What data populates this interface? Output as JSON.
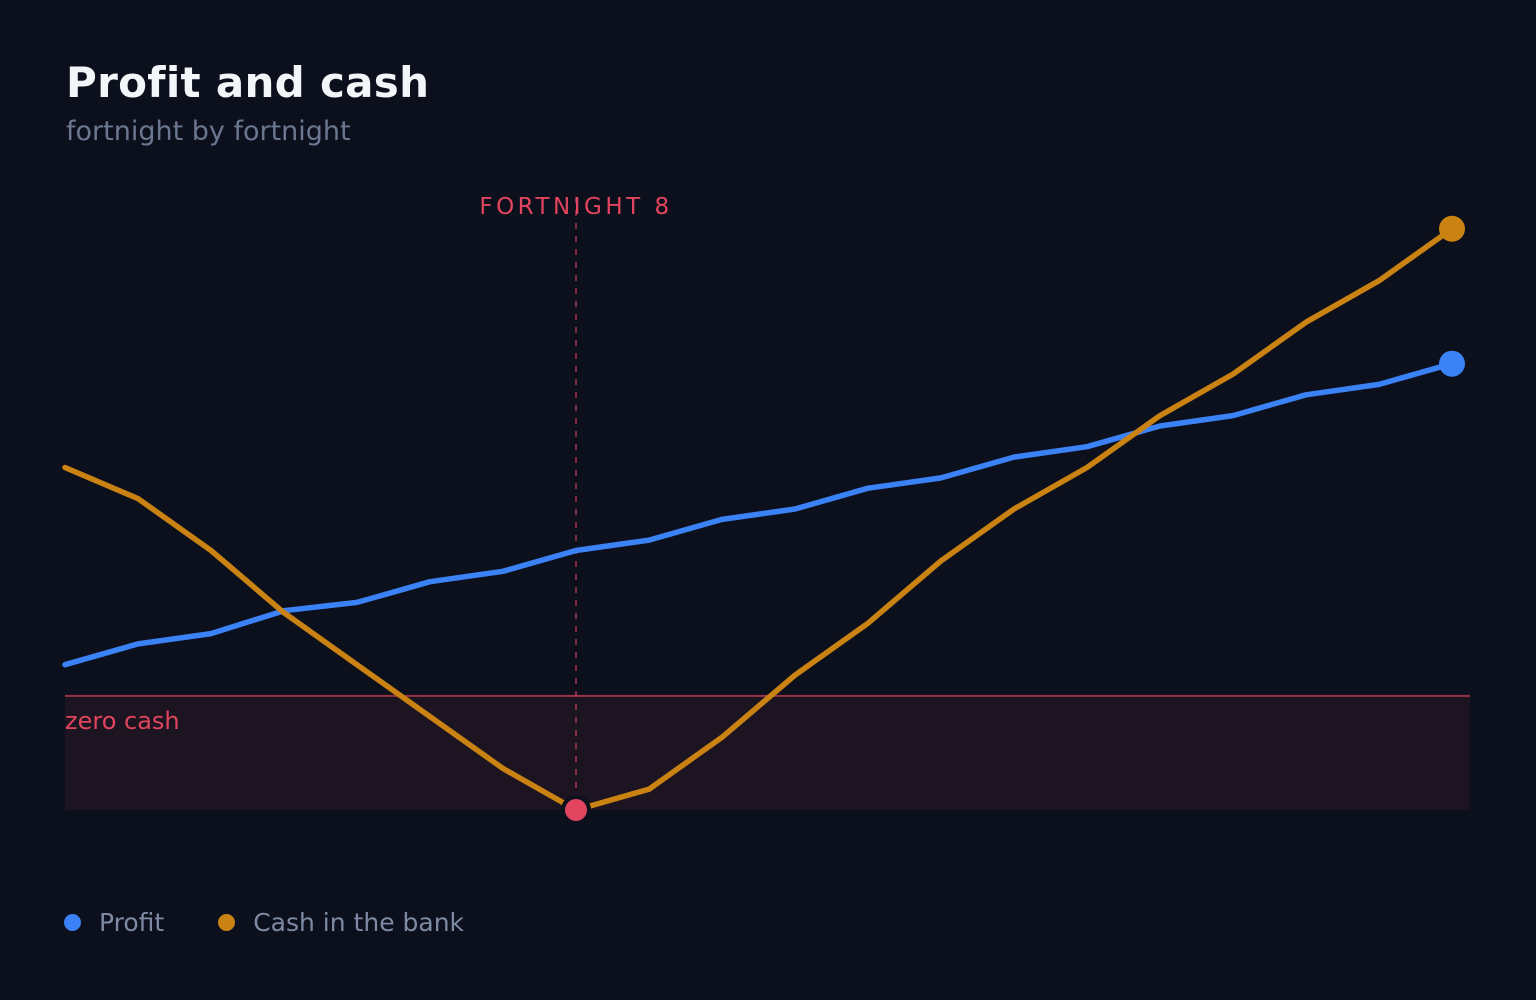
{
  "title": "Profit and cash",
  "subtitle": "fortnight by fortnight",
  "colors": {
    "background": "#0b101c",
    "profit": "#3b82f6",
    "cash": "#ca8212",
    "alert": "#e0445e",
    "negative_zone": "#1c1420"
  },
  "chart_data": {
    "type": "line",
    "title": "Profit and cash",
    "subtitle": "fortnight by fortnight",
    "xlabel": "",
    "ylabel": "",
    "x": [
      1,
      2,
      3,
      4,
      5,
      6,
      7,
      8,
      9,
      10,
      11,
      12,
      13,
      14,
      15,
      16,
      17,
      18,
      19,
      20
    ],
    "xlim": [
      1,
      20
    ],
    "ylim": [
      -11,
      47
    ],
    "grid": false,
    "legend_position": "bottom-left",
    "series": [
      {
        "name": "Profit",
        "color": "#3b82f6",
        "values": [
          3,
          5,
          6,
          8.2,
          9,
          11,
          12,
          14,
          15,
          17,
          18,
          20,
          21,
          23,
          24,
          26,
          27,
          29,
          30,
          32
        ]
      },
      {
        "name": "Cash in the bank",
        "color": "#ca8212",
        "values": [
          22,
          19,
          14,
          8,
          3,
          -2,
          -7,
          -11,
          -9,
          -4,
          2,
          7,
          13,
          18,
          22,
          27,
          31,
          36,
          40,
          45
        ]
      }
    ],
    "reference_line": {
      "y": 0,
      "label": "zero cash"
    },
    "marker": {
      "x": 8,
      "label": "FORTNIGHT 8"
    }
  }
}
